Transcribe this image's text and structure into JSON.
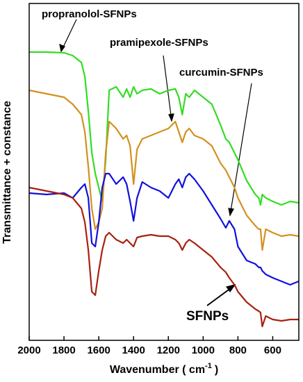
{
  "chart_data": {
    "type": "line",
    "y_label": "Transmittance + constance",
    "x_label": "Wavenumber  ( cm",
    "x_label_sup": "-1",
    "x_label_end": ")",
    "x": [
      2000,
      1900,
      1800,
      1750,
      1700,
      1680,
      1660,
      1640,
      1620,
      1600,
      1580,
      1560,
      1540,
      1500,
      1460,
      1440,
      1420,
      1400,
      1380,
      1350,
      1300,
      1250,
      1200,
      1160,
      1140,
      1120,
      1100,
      1080,
      1050,
      1000,
      950,
      900,
      870,
      850,
      820,
      800,
      750,
      700,
      680,
      670,
      660,
      640,
      600,
      550,
      500,
      450
    ],
    "xlim": [
      2000,
      450
    ],
    "xticks": [
      2000,
      1800,
      1600,
      1400,
      1200,
      1000,
      800,
      600
    ],
    "ylim": [
      0,
      485
    ],
    "series": [
      {
        "name": "propranolol-SFNPs",
        "color": "#33dd22",
        "values": [
          415,
          415,
          414,
          410,
          400,
          380,
          330,
          270,
          240,
          220,
          200,
          260,
          360,
          365,
          350,
          362,
          350,
          365,
          355,
          360,
          362,
          355,
          360,
          362,
          350,
          325,
          355,
          350,
          360,
          350,
          340,
          310,
          290,
          285,
          270,
          260,
          230,
          210,
          205,
          195,
          210,
          205,
          200,
          195,
          200,
          198
        ]
      },
      {
        "name": "pramipexole-SFNPs",
        "color": "#d4901e",
        "values": [
          360,
          355,
          350,
          340,
          325,
          300,
          250,
          190,
          160,
          170,
          190,
          270,
          315,
          305,
          290,
          295,
          280,
          225,
          275,
          290,
          295,
          300,
          305,
          315,
          300,
          285,
          300,
          305,
          295,
          290,
          280,
          255,
          245,
          235,
          220,
          205,
          180,
          165,
          160,
          160,
          130,
          160,
          155,
          150,
          152,
          150
        ]
      },
      {
        "name": "curcumin-SFNPs",
        "color": "#1010dd",
        "values": [
          212,
          210,
          212,
          205,
          220,
          225,
          205,
          140,
          135,
          170,
          220,
          240,
          240,
          225,
          235,
          225,
          200,
          172,
          205,
          228,
          220,
          215,
          205,
          225,
          232,
          220,
          235,
          240,
          232,
          215,
          195,
          175,
          162,
          172,
          160,
          135,
          115,
          110,
          105,
          105,
          100,
          95,
          90,
          85,
          80,
          85
        ]
      },
      {
        "name": "SFNPs",
        "color": "#a82010",
        "values": [
          220,
          215,
          210,
          205,
          190,
          170,
          130,
          70,
          65,
          100,
          130,
          150,
          155,
          145,
          140,
          145,
          140,
          135,
          148,
          150,
          152,
          150,
          150,
          145,
          140,
          130,
          140,
          145,
          140,
          130,
          120,
          105,
          98,
          90,
          80,
          70,
          55,
          45,
          42,
          40,
          20,
          35,
          30,
          28,
          30,
          30
        ]
      }
    ]
  }
}
